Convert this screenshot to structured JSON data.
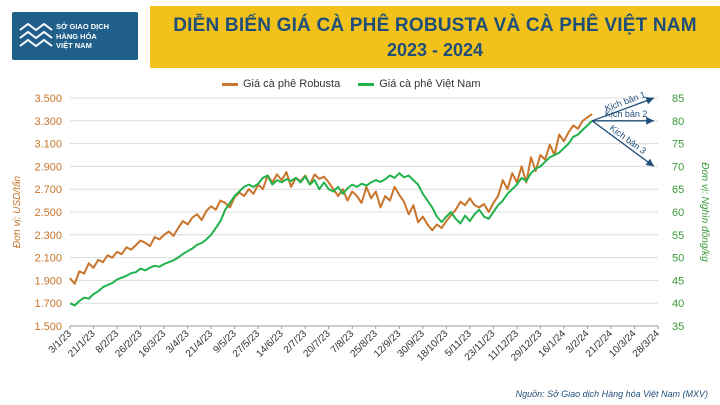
{
  "header": {
    "logo_text": "SỞ GIAO DỊCH\nHÀNG HÓA\nVIỆT NAM",
    "title": "DIỄN BIẾN GIÁ CÀ PHÊ ROBUSTA VÀ CÀ PHÊ VIỆT NAM",
    "subtitle": "2023 - 2024"
  },
  "source": "Nguồn: Sở Giao dịch Hàng hóa Việt Nam (MXV)",
  "colors": {
    "robusta": "#c8742a",
    "vietnam": "#22b24c",
    "left_axis": "#c8742a",
    "right_axis": "#3a9a3a",
    "arrow": "#1f4e79"
  },
  "chart_data": {
    "type": "line",
    "x_tick_labels": [
      "3/1/23",
      "21/1/23",
      "8/2/23",
      "26/2/23",
      "16/3/23",
      "3/4/23",
      "21/4/23",
      "9/5/23",
      "27/5/23",
      "14/6/23",
      "2/7/23",
      "20/7/23",
      "7/8/23",
      "25/8/23",
      "12/9/23",
      "30/9/23",
      "18/10/23",
      "5/11/23",
      "23/11/23",
      "11/12/23",
      "29/12/23",
      "16/1/24",
      "3/2/24",
      "21/2/24",
      "10/3/24",
      "28/3/24"
    ],
    "y_left": {
      "label": "Đơn vị: USD/tấn",
      "ticks": [
        "1.500",
        "1.700",
        "1.900",
        "2.100",
        "2.300",
        "2.500",
        "2.700",
        "2.900",
        "3.100",
        "3.300",
        "3.500"
      ],
      "range": [
        1500,
        3500
      ]
    },
    "y_right": {
      "label": "Đơn vị: Nghìn đồng/kg",
      "ticks": [
        "35",
        "40",
        "45",
        "50",
        "55",
        "60",
        "65",
        "70",
        "75",
        "80",
        "85"
      ],
      "range": [
        35,
        85
      ]
    },
    "series": [
      {
        "name": "Giá cà phê Robusta",
        "axis": "left",
        "x_index": [
          0,
          0.2,
          0.4,
          0.6,
          0.8,
          1.0,
          1.2,
          1.4,
          1.6,
          1.8,
          2.0,
          2.2,
          2.4,
          2.6,
          2.8,
          3.0,
          3.2,
          3.4,
          3.6,
          3.8,
          4.0,
          4.2,
          4.4,
          4.6,
          4.8,
          5.0,
          5.2,
          5.4,
          5.6,
          5.8,
          6.0,
          6.2,
          6.4,
          6.6,
          6.8,
          7.0,
          7.2,
          7.4,
          7.6,
          7.8,
          8.0,
          8.2,
          8.4,
          8.6,
          8.8,
          9.0,
          9.2,
          9.4,
          9.6,
          9.8,
          10.0,
          10.2,
          10.4,
          10.6,
          10.8,
          11.0,
          11.2,
          11.4,
          11.6,
          11.8,
          12.0,
          12.2,
          12.4,
          12.6,
          12.8,
          13.0,
          13.2,
          13.4,
          13.6,
          13.8,
          14.0,
          14.2,
          14.4,
          14.6,
          14.8,
          15.0,
          15.2,
          15.4,
          15.6,
          15.8,
          16.0,
          16.2,
          16.4,
          16.6,
          16.8,
          17.0,
          17.2,
          17.4,
          17.6,
          17.8,
          18.0,
          18.2,
          18.4,
          18.6,
          18.8,
          19.0,
          19.2,
          19.4,
          19.6,
          19.8,
          20.0,
          20.2,
          20.4,
          20.6,
          20.8,
          21.0,
          21.2,
          21.4,
          21.6,
          21.8,
          22.0,
          22.2
        ],
        "values": [
          1920,
          1870,
          1980,
          1960,
          2050,
          2010,
          2080,
          2060,
          2120,
          2100,
          2150,
          2130,
          2190,
          2170,
          2210,
          2250,
          2230,
          2200,
          2280,
          2260,
          2300,
          2330,
          2290,
          2360,
          2420,
          2390,
          2450,
          2480,
          2430,
          2510,
          2550,
          2520,
          2600,
          2580,
          2540,
          2630,
          2670,
          2640,
          2700,
          2660,
          2740,
          2700,
          2820,
          2760,
          2830,
          2780,
          2850,
          2720,
          2800,
          2770,
          2820,
          2740,
          2830,
          2790,
          2810,
          2760,
          2700,
          2640,
          2700,
          2600,
          2680,
          2640,
          2580,
          2720,
          2620,
          2680,
          2540,
          2640,
          2600,
          2720,
          2650,
          2590,
          2480,
          2560,
          2410,
          2460,
          2390,
          2340,
          2390,
          2360,
          2420,
          2470,
          2520,
          2590,
          2560,
          2620,
          2560,
          2540,
          2570,
          2500,
          2580,
          2640,
          2780,
          2700,
          2840,
          2760,
          2900,
          2760,
          2980,
          2860,
          3000,
          2960,
          3090,
          3000,
          3180,
          3120,
          3200,
          3260,
          3230,
          3300,
          3330,
          3360
        ]
      },
      {
        "name": "Giá cà phê Việt Nam",
        "axis": "right",
        "x_index": [
          0,
          0.2,
          0.4,
          0.6,
          0.8,
          1.0,
          1.2,
          1.4,
          1.6,
          1.8,
          2.0,
          2.2,
          2.4,
          2.6,
          2.8,
          3.0,
          3.2,
          3.4,
          3.6,
          3.8,
          4.0,
          4.2,
          4.4,
          4.6,
          4.8,
          5.0,
          5.2,
          5.4,
          5.6,
          5.8,
          6.0,
          6.2,
          6.4,
          6.6,
          6.8,
          7.0,
          7.2,
          7.4,
          7.6,
          7.8,
          8.0,
          8.2,
          8.4,
          8.6,
          8.8,
          9.0,
          9.2,
          9.4,
          9.6,
          9.8,
          10.0,
          10.2,
          10.4,
          10.6,
          10.8,
          11.0,
          11.2,
          11.4,
          11.6,
          11.8,
          12.0,
          12.2,
          12.4,
          12.6,
          12.8,
          13.0,
          13.2,
          13.4,
          13.6,
          13.8,
          14.0,
          14.2,
          14.4,
          14.6,
          14.8,
          15.0,
          15.2,
          15.4,
          15.6,
          15.8,
          16.0,
          16.2,
          16.4,
          16.6,
          16.8,
          17.0,
          17.2,
          17.4,
          17.6,
          17.8,
          18.0,
          18.2,
          18.4,
          18.6,
          18.8,
          19.0,
          19.2,
          19.4,
          19.6,
          19.8,
          20.0,
          20.2,
          20.4,
          20.6,
          20.8,
          21.0,
          21.2,
          21.4,
          21.6,
          21.8,
          22.0,
          22.2
        ],
        "values": [
          40.0,
          39.5,
          40.5,
          41.2,
          41.0,
          42.0,
          42.6,
          43.5,
          44.0,
          44.4,
          45.2,
          45.6,
          46.0,
          46.6,
          46.8,
          47.6,
          47.2,
          47.8,
          48.2,
          48.0,
          48.6,
          49.0,
          49.4,
          50.0,
          50.8,
          51.4,
          52.0,
          52.8,
          53.2,
          54.0,
          55.0,
          56.5,
          58.0,
          60.5,
          62.0,
          63.5,
          64.5,
          65.5,
          66.0,
          65.5,
          66.2,
          67.5,
          68.0,
          66.0,
          67.0,
          66.5,
          67.2,
          66.8,
          67.5,
          66.5,
          67.8,
          66.0,
          67.0,
          65.0,
          66.5,
          65.0,
          64.5,
          65.5,
          64.0,
          65.2,
          66.0,
          65.5,
          66.2,
          65.8,
          66.5,
          67.0,
          66.6,
          67.2,
          68.0,
          67.5,
          68.5,
          67.6,
          68.0,
          67.0,
          66.0,
          64.0,
          62.5,
          61.0,
          59.0,
          57.8,
          59.0,
          60.0,
          58.5,
          57.5,
          59.2,
          58.0,
          59.5,
          60.5,
          59.0,
          58.5,
          60.0,
          61.5,
          62.5,
          64.0,
          65.0,
          66.0,
          67.5,
          66.8,
          68.5,
          69.5,
          70.0,
          71.0,
          72.0,
          72.5,
          73.0,
          74.0,
          75.0,
          76.5,
          77.0,
          78.0,
          79.0,
          80.0
        ]
      }
    ],
    "scenarios": [
      {
        "label": "Kịch bản 1",
        "end_value": 85,
        "axis": "right"
      },
      {
        "label": "Kịch bản 2",
        "end_value": 80,
        "axis": "right"
      },
      {
        "label": "Kịch bản 3",
        "end_value": 70,
        "axis": "right"
      }
    ]
  }
}
